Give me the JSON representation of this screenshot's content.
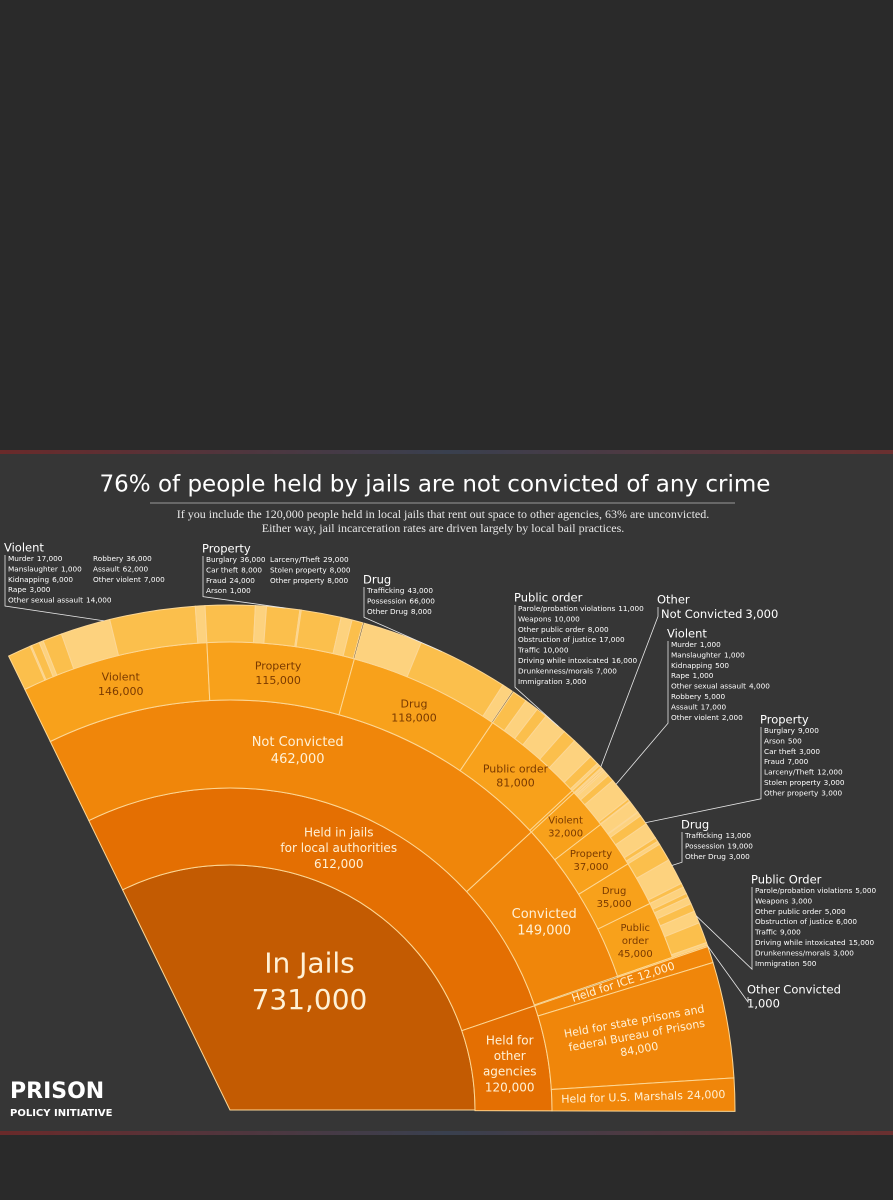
{
  "chart_data": {
    "type": "sunburst",
    "title": "76% of people held by jails are not convicted of any crime",
    "subtitle": [
      "If you include the 120,000 people held in local jails that rent out space to other agencies, 63% are unconvicted.",
      "Either way, jail incarceration rates are driven largely by local bail practices."
    ],
    "logo": [
      "PRISON",
      "POLICY INITIATIVE"
    ],
    "colors": [
      "#c35b02",
      "#e46f02",
      "#f0860a",
      "#f8a11b",
      "#fbbf4c",
      "#fdd27e"
    ],
    "root": {
      "name": [
        "In Jails"
      ],
      "value": 731000,
      "value_label": "731,000",
      "children": [
        {
          "name": [
            "Held in jails",
            "for local authorities"
          ],
          "value": 612000,
          "value_label": "612,000",
          "children": [
            {
              "name": [
                "Not Convicted"
              ],
              "value": 462000,
              "value_label": "462,000",
              "children": [
                {
                  "name": [
                    "Violent"
                  ],
                  "value": 146000,
                  "value_label": "146,000",
                  "heading": "Violent",
                  "children": [
                    {
                      "name": "Murder",
                      "value": 17000,
                      "value_label": "17,000"
                    },
                    {
                      "name": "Manslaughter",
                      "value": 1000,
                      "value_label": "1,000"
                    },
                    {
                      "name": "Kidnapping",
                      "value": 6000,
                      "value_label": "6,000"
                    },
                    {
                      "name": "Rape",
                      "value": 3000,
                      "value_label": "3,000"
                    },
                    {
                      "name": "Other sexual assault",
                      "value": 14000,
                      "value_label": "14,000"
                    },
                    {
                      "name": "Robbery",
                      "value": 36000,
                      "value_label": "36,000"
                    },
                    {
                      "name": "Assault",
                      "value": 62000,
                      "value_label": "62,000"
                    },
                    {
                      "name": "Other violent",
                      "value": 7000,
                      "value_label": "7,000"
                    }
                  ]
                },
                {
                  "name": [
                    "Property"
                  ],
                  "value": 115000,
                  "value_label": "115,000",
                  "heading": "Property",
                  "children": [
                    {
                      "name": "Burglary",
                      "value": 36000,
                      "value_label": "36,000"
                    },
                    {
                      "name": "Car theft",
                      "value": 8000,
                      "value_label": "8,000"
                    },
                    {
                      "name": "Fraud",
                      "value": 24000,
                      "value_label": "24,000"
                    },
                    {
                      "name": "Arson",
                      "value": 1000,
                      "value_label": "1,000"
                    },
                    {
                      "name": "Larceny/Theft",
                      "value": 29000,
                      "value_label": "29,000"
                    },
                    {
                      "name": "Stolen property",
                      "value": 8000,
                      "value_label": "8,000"
                    },
                    {
                      "name": "Other property",
                      "value": 8000,
                      "value_label": "8,000"
                    }
                  ]
                },
                {
                  "name": [
                    "Drug"
                  ],
                  "value": 118000,
                  "value_label": "118,000",
                  "heading": "Drug",
                  "children": [
                    {
                      "name": "Trafficking",
                      "value": 43000,
                      "value_label": "43,000"
                    },
                    {
                      "name": "Possession",
                      "value": 66000,
                      "value_label": "66,000"
                    },
                    {
                      "name": "Other Drug",
                      "value": 8000,
                      "value_label": "8,000"
                    }
                  ]
                },
                {
                  "name": [
                    "Public order"
                  ],
                  "value": 81000,
                  "value_label": "81,000",
                  "heading": "Public order",
                  "children": [
                    {
                      "name": "Parole/probation violations",
                      "value": 11000,
                      "value_label": "11,000"
                    },
                    {
                      "name": "Weapons",
                      "value": 10000,
                      "value_label": "10,000"
                    },
                    {
                      "name": "Other public order",
                      "value": 8000,
                      "value_label": "8,000"
                    },
                    {
                      "name": "Obstruction of justice",
                      "value": 17000,
                      "value_label": "17,000"
                    },
                    {
                      "name": "Traffic",
                      "value": 10000,
                      "value_label": "10,000"
                    },
                    {
                      "name": "Driving while intoxicated",
                      "value": 16000,
                      "value_label": "16,000"
                    },
                    {
                      "name": "Drunkenness/morals",
                      "value": 7000,
                      "value_label": "7,000"
                    },
                    {
                      "name": "Immigration",
                      "value": 3000,
                      "value_label": "3,000"
                    }
                  ]
                },
                {
                  "value": 3000,
                  "heading": "Other",
                  "children": [
                    {
                      "name": "Not Convicted",
                      "value": 3000,
                      "value_label": "3,000"
                    }
                  ]
                }
              ]
            },
            {
              "name": [
                "Convicted"
              ],
              "value": 149000,
              "value_label": "149,000",
              "children": [
                {
                  "name": [
                    "Violent"
                  ],
                  "value": 32000,
                  "value_label": "32,000",
                  "heading": "Violent",
                  "children": [
                    {
                      "name": "Murder",
                      "value": 1000,
                      "value_label": "1,000"
                    },
                    {
                      "name": "Manslaughter",
                      "value": 1000,
                      "value_label": "1,000"
                    },
                    {
                      "name": "Kidnapping",
                      "value": 500
                    },
                    {
                      "name": "Rape",
                      "value": 1000,
                      "value_label": "1,000"
                    },
                    {
                      "name": "Other sexual assault",
                      "value": 4000,
                      "value_label": "4,000"
                    },
                    {
                      "name": "Robbery",
                      "value": 5000,
                      "value_label": "5,000"
                    },
                    {
                      "name": "Assault",
                      "value": 17000,
                      "value_label": "17,000"
                    },
                    {
                      "name": "Other violent",
                      "value": 2000,
                      "value_label": "2,000"
                    }
                  ]
                },
                {
                  "name": [
                    "Property"
                  ],
                  "value": 37000,
                  "value_label": "37,000",
                  "heading": "Property",
                  "children": [
                    {
                      "name": "Burglary",
                      "value": 9000,
                      "value_label": "9,000"
                    },
                    {
                      "name": "Arson",
                      "value": 500
                    },
                    {
                      "name": "Car theft",
                      "value": 3000,
                      "value_label": "3,000"
                    },
                    {
                      "name": "Fraud",
                      "value": 7000,
                      "value_label": "7,000"
                    },
                    {
                      "name": "Larceny/Theft",
                      "value": 12000,
                      "value_label": "12,000"
                    },
                    {
                      "name": "Stolen property",
                      "value": 3000,
                      "value_label": "3,000"
                    },
                    {
                      "name": "Other property",
                      "value": 3000,
                      "value_label": "3,000"
                    }
                  ]
                },
                {
                  "name": [
                    "Drug"
                  ],
                  "value": 35000,
                  "value_label": "35,000",
                  "heading": "Drug",
                  "children": [
                    {
                      "name": "Trafficking",
                      "value": 13000,
                      "value_label": "13,000"
                    },
                    {
                      "name": "Possession",
                      "value": 19000,
                      "value_label": "19,000"
                    },
                    {
                      "name": "Other Drug",
                      "value": 3000,
                      "value_label": "3,000"
                    }
                  ]
                },
                {
                  "name": [
                    "Public",
                    "order"
                  ],
                  "value": 45000,
                  "value_label": "45,000",
                  "heading": "Public Order",
                  "children": [
                    {
                      "name": "Parole/probation violations",
                      "value": 5000,
                      "value_label": "5,000"
                    },
                    {
                      "name": "Weapons",
                      "value": 3000,
                      "value_label": "3,000"
                    },
                    {
                      "name": "Other public order",
                      "value": 5000,
                      "value_label": "5,000"
                    },
                    {
                      "name": "Obstruction of justice",
                      "value": 6000,
                      "value_label": "6,000"
                    },
                    {
                      "name": "Traffic",
                      "value": 9000,
                      "value_label": "9,000"
                    },
                    {
                      "name": "Driving while intoxicated",
                      "value": 15000,
                      "value_label": "15,000"
                    },
                    {
                      "name": "Drunkenness/morals",
                      "value": 3000,
                      "value_label": "3,000"
                    },
                    {
                      "name": "Immigration",
                      "value": 500
                    }
                  ]
                },
                {
                  "value": 1000,
                  "value_label": "1,000",
                  "heading": "Other Convicted"
                }
              ]
            }
          ]
        },
        {
          "name": [
            "Held for",
            "other",
            "agencies"
          ],
          "value": 120000,
          "value_label": "120,000",
          "children": [
            {
              "name": [
                "Held for ICE"
              ],
              "value": 12000,
              "value_label": "12,000"
            },
            {
              "name": [
                "Held for state prisons and",
                "federal Bureau of Prisons"
              ],
              "value": 84000,
              "value_label": "84,000"
            },
            {
              "name": [
                "Held for U.S. Marshals"
              ],
              "value": 24000,
              "value_label": "24,000"
            }
          ]
        }
      ]
    }
  }
}
